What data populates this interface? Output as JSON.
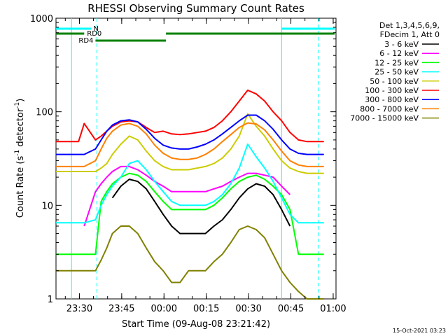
{
  "chart_data": {
    "type": "line",
    "title": "RHESSI Observing Summary Count Rates",
    "xlabel": "Start Time (09-Aug-08 23:21:42)",
    "ylabel_prefix": "Count Rate (s",
    "ylabel_sup": "-1",
    "ylabel_mid": " detector",
    "ylabel_sup2": "-1",
    "ylabel_suffix": ")",
    "y_scale": "log",
    "ylim": [
      1,
      1000
    ],
    "xlim": [
      "23:21:42",
      "01:01:00"
    ],
    "x_tick_labels": [
      "23:30",
      "23:45",
      "00:00",
      "00:15",
      "00:30",
      "00:45",
      "01:00"
    ],
    "x_tick_minutes": [
      8.3,
      23.3,
      38.3,
      53.3,
      68.3,
      83.3,
      98.3
    ],
    "y_tick_labels": [
      "1",
      "10",
      "100",
      "1000"
    ],
    "y_tick_values": [
      1,
      10,
      100,
      1000
    ],
    "grid": false,
    "legend_header": [
      "Det 1,3,4,5,6,9,",
      "FDecim 1, Att 0"
    ],
    "legend_position": "right",
    "timestamp": "15-Oct-2021 03:23",
    "flags": [
      {
        "label": "N",
        "color": "#00ffff"
      },
      {
        "label": "RD0",
        "color": "#008000"
      },
      {
        "label": "RD4",
        "color": "#008000"
      }
    ],
    "night_boundaries_minutes": [
      5.5,
      80
    ],
    "saa_dashed_minutes": [
      14.5,
      93
    ],
    "x_minutes": [
      0,
      4,
      8,
      10,
      14,
      16,
      18,
      20,
      23,
      26,
      29,
      32,
      35,
      38,
      41,
      44,
      47,
      50,
      53,
      56,
      59,
      62,
      65,
      68,
      71,
      74,
      77,
      80,
      83,
      86,
      89,
      92,
      95
    ],
    "series": [
      {
        "name": "3 - 6 keV",
        "color": "#000000",
        "values": [
          null,
          null,
          null,
          null,
          null,
          null,
          null,
          12,
          16,
          19,
          18,
          15,
          11,
          8,
          6,
          5,
          5,
          5,
          5,
          6,
          7,
          9,
          12,
          15,
          17,
          16,
          13,
          9,
          6,
          null,
          null,
          null,
          null
        ]
      },
      {
        "name": "6 - 12 keV",
        "color": "#ff00ff",
        "values": [
          null,
          null,
          null,
          6,
          14,
          17,
          20,
          23,
          26,
          26,
          24,
          21,
          18,
          16,
          14,
          14,
          14,
          14,
          14,
          15,
          16,
          18,
          20,
          22,
          22,
          21,
          20,
          16,
          13,
          null,
          null,
          null,
          null
        ]
      },
      {
        "name": "12 - 25 keV",
        "color": "#00ff00",
        "values": [
          3,
          3,
          3,
          3,
          3,
          11,
          14,
          17,
          20,
          22,
          21,
          18,
          14,
          11,
          9,
          9,
          9,
          9,
          9,
          10,
          12,
          15,
          18,
          20,
          21,
          19,
          16,
          13,
          9,
          3,
          3,
          3,
          3
        ]
      },
      {
        "name": "25 - 50 keV",
        "color": "#00ffff",
        "values": [
          6.5,
          6.5,
          6.5,
          6.5,
          7,
          10,
          13,
          16,
          20,
          28,
          30,
          24,
          18,
          14,
          11,
          10,
          10,
          10,
          10,
          11,
          13,
          17,
          25,
          45,
          33,
          25,
          18,
          12,
          8,
          6.5,
          6.5,
          6.5,
          6.5
        ]
      },
      {
        "name": "50 - 100 keV",
        "color": "#cccc00",
        "values": [
          23,
          23,
          23,
          23,
          23,
          25,
          28,
          35,
          45,
          55,
          50,
          38,
          30,
          26,
          24,
          24,
          24,
          25,
          26,
          28,
          32,
          40,
          55,
          95,
          70,
          55,
          40,
          30,
          25,
          23,
          22,
          22,
          22
        ]
      },
      {
        "name": "100 - 300 keV",
        "color": "#ff0000",
        "values": [
          48,
          48,
          48,
          75,
          50,
          55,
          62,
          70,
          78,
          80,
          78,
          68,
          60,
          62,
          58,
          57,
          58,
          60,
          62,
          68,
          80,
          100,
          130,
          170,
          155,
          130,
          100,
          80,
          60,
          50,
          48,
          48,
          48
        ]
      },
      {
        "name": "300 - 800 keV",
        "color": "#0000ff",
        "values": [
          35,
          35,
          35,
          35,
          40,
          50,
          62,
          72,
          80,
          82,
          78,
          65,
          52,
          44,
          41,
          40,
          40,
          42,
          45,
          50,
          58,
          68,
          80,
          92,
          92,
          80,
          65,
          50,
          40,
          36,
          35,
          35,
          35
        ]
      },
      {
        "name": "800 - 7000 keV",
        "color": "#ff8000",
        "values": [
          26,
          26,
          26,
          26,
          30,
          40,
          52,
          62,
          72,
          75,
          70,
          58,
          44,
          36,
          32,
          31,
          31,
          32,
          35,
          40,
          48,
          57,
          68,
          76,
          74,
          64,
          50,
          38,
          30,
          27,
          26,
          26,
          26
        ]
      },
      {
        "name": "7000 - 15000 keV",
        "color": "#808000",
        "values": [
          2,
          2,
          2,
          2,
          2,
          2.6,
          3.5,
          5,
          6,
          6,
          5,
          3.5,
          2.5,
          2,
          1.5,
          1.5,
          2,
          2,
          2,
          2.5,
          3,
          4,
          5.5,
          6,
          5.5,
          4.5,
          3,
          2,
          1.5,
          1.2,
          1,
          1,
          1
        ]
      }
    ]
  }
}
